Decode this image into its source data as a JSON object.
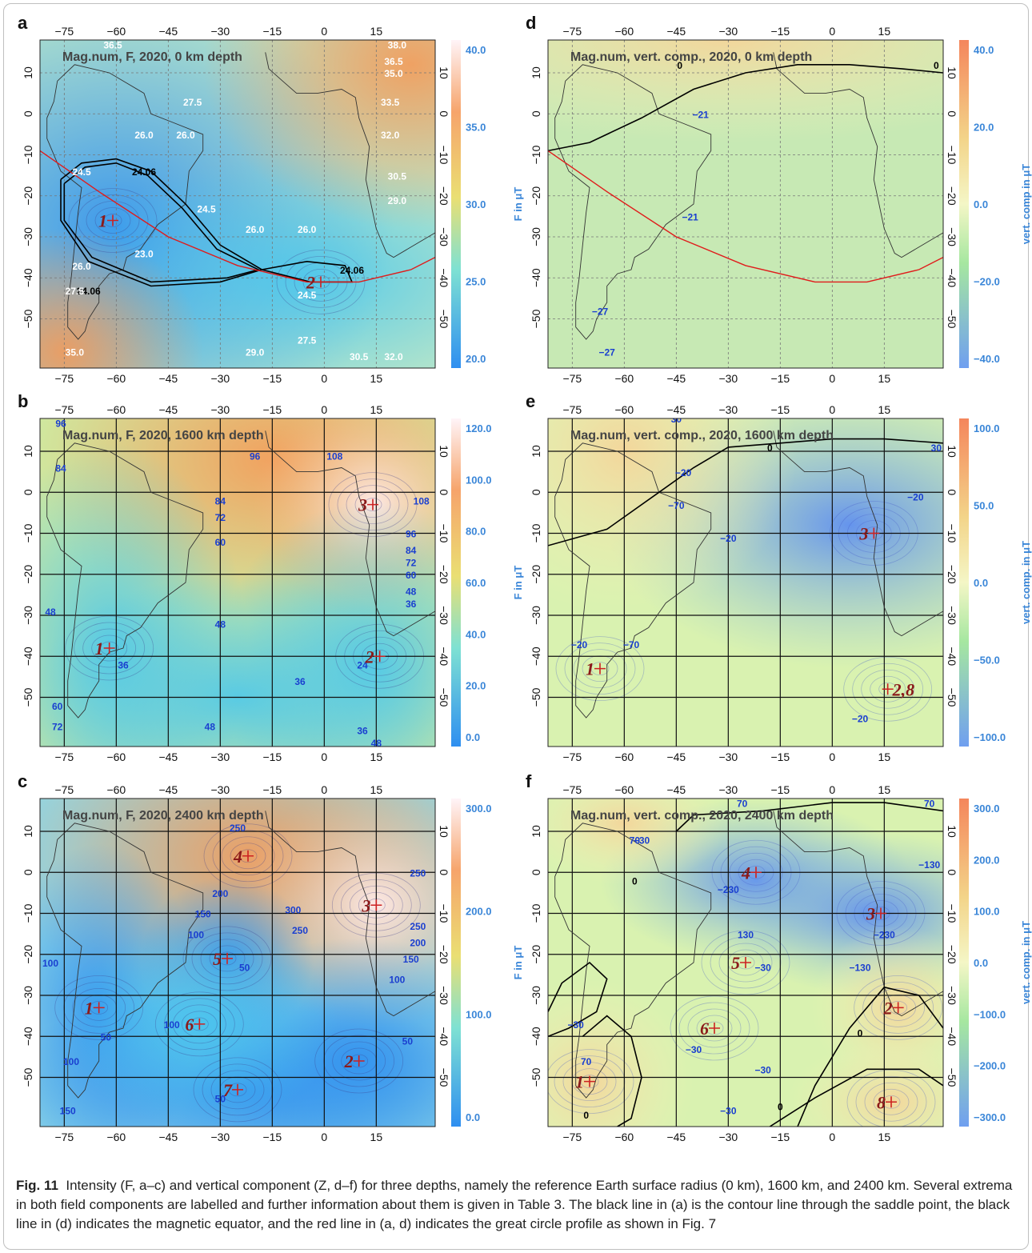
{
  "figure": {
    "caption_label": "Fig. 11",
    "caption_text": "Intensity (F, a–c) and vertical component (Z, d–f) for three depths, namely the reference Earth surface radius (0 km), 1600 km, and 2400 km. Several extrema in both field components are labelled and further information about them is given in Table 3. The black line in (a) is the contour line through the saddle point, the black line in (d) indicates the magnetic equator, and the red line in (a, d) indicates the great circle profile as shown in Fig. 7"
  },
  "axes": {
    "lon_ticks": [
      "−75",
      "−60",
      "−45",
      "−30",
      "−15",
      "0",
      "15"
    ],
    "lat_ticks": [
      "10",
      "0",
      "−10",
      "−20",
      "−30",
      "−40",
      "−50"
    ],
    "lon_range": [
      -82,
      32
    ],
    "lat_range": [
      -62,
      18
    ]
  },
  "colors": {
    "marker": "#cc2222",
    "label": "#8b1a1a",
    "contour_label_b": "#1a3fd0",
    "colorbar_text": "#3a86d8"
  },
  "panels": [
    {
      "letter": "a",
      "title": "Mag.num, F, 2020, 0 km depth",
      "colorbar_label": "F in μT",
      "colorbar_ticks": [
        "40.0",
        "35.0",
        "30.0",
        "25.0",
        "20.0"
      ],
      "scheme": "F",
      "contour_labels": [
        "36.5",
        "38.0",
        "36.5",
        "35.0",
        "33.5",
        "32.0",
        "30.5",
        "29.0",
        "27.5",
        "26.0",
        "26.0",
        "24.5",
        "24.5",
        "23.0",
        "24.06",
        "24.06",
        "24.06",
        "26.0",
        "26.0",
        "24.5",
        "27.5",
        "29.0",
        "30.5",
        "32.0",
        "26.0",
        "27.5",
        "35.0"
      ],
      "extrema": [
        {
          "label": "1",
          "lon": -61,
          "lat": -26
        },
        {
          "label": "2",
          "lon": -1,
          "lat": -41
        }
      ]
    },
    {
      "letter": "b",
      "title": "Mag.num, F, 2020, 1600 km depth",
      "colorbar_label": "F in μT",
      "colorbar_ticks": [
        "120.0",
        "100.0",
        "80.0",
        "60.0",
        "40.0",
        "20.0",
        "0.0"
      ],
      "scheme": "F",
      "contour_labels": [
        "96",
        "84",
        "108",
        "108",
        "96",
        "84",
        "72",
        "60",
        "96",
        "84",
        "72",
        "60",
        "48",
        "36",
        "48",
        "48",
        "36",
        "36",
        "24",
        "48",
        "36",
        "60",
        "72",
        "48"
      ],
      "extrema": [
        {
          "label": "1",
          "lon": -62,
          "lat": -38
        },
        {
          "label": "2",
          "lon": 16,
          "lat": -40
        },
        {
          "label": "3",
          "lon": 14,
          "lat": -3
        }
      ]
    },
    {
      "letter": "c",
      "title": "Mag.num, F, 2020, 2400 km depth",
      "colorbar_label": "F in μT",
      "colorbar_ticks": [
        "300.0",
        "200.0",
        "100.0",
        "0.0"
      ],
      "scheme": "F",
      "contour_labels": [
        "250",
        "250",
        "200",
        "150",
        "100",
        "300",
        "250",
        "250",
        "200",
        "150",
        "100",
        "50",
        "100",
        "100",
        "50",
        "50",
        "50",
        "100",
        "150"
      ],
      "extrema": [
        {
          "label": "1",
          "lon": -65,
          "lat": -33
        },
        {
          "label": "2",
          "lon": 10,
          "lat": -46
        },
        {
          "label": "3",
          "lon": 15,
          "lat": -8
        },
        {
          "label": "4",
          "lon": -22,
          "lat": 4
        },
        {
          "label": "5",
          "lon": -28,
          "lat": -21
        },
        {
          "label": "6",
          "lon": -36,
          "lat": -37
        },
        {
          "label": "7",
          "lon": -25,
          "lat": -53
        }
      ]
    },
    {
      "letter": "d",
      "title": "Mag.num, vert. comp., 2020, 0 km depth",
      "colorbar_label": "vert. comp in μT",
      "colorbar_ticks": [
        "40.0",
        "20.0",
        "0.0",
        "−20.0",
        "−40.0"
      ],
      "scheme": "Z",
      "contour_labels": [
        "0",
        "0",
        "−21",
        "−21",
        "−27",
        "−27"
      ],
      "extrema": []
    },
    {
      "letter": "e",
      "title": "Mag.num, vert. comp., 2020, 1600 km depth",
      "colorbar_label": "vert. comp. in μT",
      "colorbar_ticks": [
        "100.0",
        "50.0",
        "0.0",
        "−50.0",
        "−100.0"
      ],
      "scheme": "Z",
      "contour_labels": [
        "0",
        "30",
        "30",
        "−20",
        "−20",
        "−70",
        "−70",
        "−20",
        "−20",
        "−20"
      ],
      "extrema": [
        {
          "label": "1",
          "lon": -67,
          "lat": -43
        },
        {
          "label": "2,8",
          "lon": 16,
          "lat": -48
        },
        {
          "label": "3",
          "lon": 12,
          "lat": -10
        }
      ]
    },
    {
      "letter": "f",
      "title": "Mag.num, vert. comp., 2020, 2400 km depth",
      "colorbar_label": "vert. comp. in μT",
      "colorbar_ticks": [
        "300.0",
        "200.0",
        "100.0",
        "0.0",
        "−100.0",
        "−200.0",
        "−300.0"
      ],
      "scheme": "Z",
      "contour_labels": [
        "70",
        "70",
        "−30",
        "−130",
        "−230",
        "−230",
        "−130",
        "−30",
        "130",
        "−30",
        "−30",
        "−30",
        "0",
        "0",
        "0",
        "0",
        "70",
        "−30",
        "70"
      ],
      "extrema": [
        {
          "label": "1",
          "lon": -70,
          "lat": -51
        },
        {
          "label": "2",
          "lon": 19,
          "lat": -33
        },
        {
          "label": "3",
          "lon": 14,
          "lat": -10
        },
        {
          "label": "4",
          "lon": -22,
          "lat": 0
        },
        {
          "label": "5",
          "lon": -25,
          "lat": -22
        },
        {
          "label": "6",
          "lon": -34,
          "lat": -38
        },
        {
          "label": "8",
          "lon": 17,
          "lat": -56
        }
      ]
    }
  ]
}
